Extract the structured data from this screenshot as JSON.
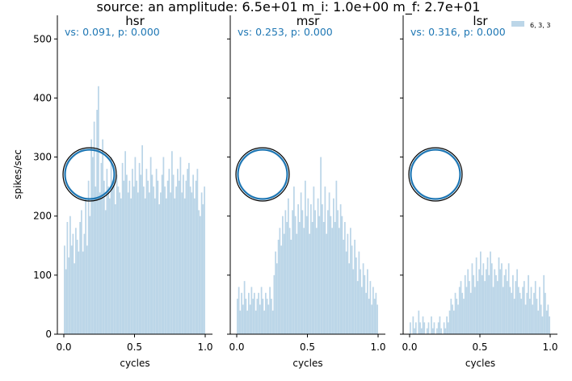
{
  "figure_title": "source: an amplitude: 6.5e+01 m_i: 1.0e+00 m_f: 2.7e+01",
  "ylabel": "spikes/sec",
  "legend_label": "6, 3, 3",
  "colors": {
    "bar": "#bcd6e8",
    "annotation": "#1f77b4",
    "circle_inner": "#1f77b4",
    "circle_outer": "#000000",
    "axis": "#000000"
  },
  "chart_data": [
    {
      "type": "bar",
      "title": "hsr",
      "annotation": "vs: 0.091, p: 0.000",
      "xlabel": "cycles",
      "xlim": [
        0.0,
        1.0
      ],
      "ylim": [
        0,
        540
      ],
      "x_ticks": [
        "0.0",
        "0.5",
        "1.0"
      ],
      "y_ticks": [
        "0",
        "100",
        "200",
        "300",
        "400",
        "500"
      ],
      "bins": 100,
      "values": [
        150,
        110,
        190,
        130,
        200,
        150,
        170,
        120,
        180,
        160,
        140,
        190,
        210,
        140,
        170,
        230,
        150,
        260,
        200,
        330,
        300,
        360,
        250,
        380,
        420,
        240,
        290,
        330,
        260,
        210,
        280,
        250,
        230,
        300,
        260,
        280,
        220,
        270,
        250,
        240,
        230,
        290,
        260,
        310,
        270,
        240,
        260,
        230,
        280,
        250,
        300,
        260,
        240,
        290,
        270,
        320,
        250,
        230,
        280,
        260,
        240,
        300,
        270,
        250,
        230,
        280,
        260,
        220,
        240,
        270,
        300,
        250,
        230,
        260,
        280,
        240,
        310,
        270,
        230,
        250,
        280,
        260,
        300,
        240,
        270,
        230,
        260,
        280,
        290,
        250,
        240,
        270,
        230,
        260,
        280,
        210,
        200,
        240,
        220,
        250
      ]
    },
    {
      "type": "bar",
      "title": "msr",
      "annotation": "vs: 0.253, p: 0.000",
      "xlabel": "cycles",
      "xlim": [
        0.0,
        1.0
      ],
      "ylim": [
        0,
        540
      ],
      "x_ticks": [
        "0.0",
        "0.5",
        "1.0"
      ],
      "y_ticks": [
        "0",
        "100",
        "200",
        "300",
        "400",
        "500"
      ],
      "bins": 100,
      "values": [
        60,
        80,
        40,
        70,
        50,
        90,
        60,
        40,
        70,
        50,
        80,
        60,
        70,
        40,
        60,
        70,
        50,
        80,
        60,
        40,
        70,
        60,
        50,
        80,
        60,
        40,
        100,
        140,
        120,
        160,
        180,
        150,
        200,
        170,
        210,
        190,
        230,
        180,
        160,
        210,
        250,
        200,
        170,
        220,
        190,
        240,
        210,
        180,
        260,
        200,
        230,
        170,
        220,
        190,
        250,
        210,
        180,
        230,
        200,
        300,
        220,
        190,
        250,
        170,
        210,
        240,
        200,
        180,
        230,
        190,
        260,
        210,
        180,
        220,
        200,
        160,
        190,
        140,
        170,
        120,
        180,
        150,
        110,
        160,
        130,
        90,
        140,
        110,
        80,
        120,
        100,
        70,
        110,
        60,
        90,
        50,
        80,
        60,
        70,
        50
      ]
    },
    {
      "type": "bar",
      "title": "lsr",
      "annotation": "vs: 0.316, p: 0.000",
      "xlabel": "cycles",
      "xlim": [
        0.0,
        1.0
      ],
      "ylim": [
        0,
        540
      ],
      "x_ticks": [
        "0.0",
        "0.5",
        "1.0"
      ],
      "y_ticks": [
        "0",
        "100",
        "200",
        "300",
        "400",
        "500"
      ],
      "bins": 100,
      "values": [
        20,
        0,
        30,
        10,
        20,
        0,
        40,
        20,
        10,
        30,
        20,
        0,
        10,
        20,
        0,
        30,
        10,
        20,
        0,
        10,
        20,
        30,
        10,
        0,
        20,
        10,
        30,
        20,
        40,
        60,
        50,
        40,
        70,
        60,
        50,
        80,
        90,
        70,
        60,
        100,
        80,
        110,
        90,
        70,
        120,
        100,
        80,
        130,
        90,
        110,
        140,
        100,
        120,
        90,
        110,
        130,
        100,
        140,
        120,
        80,
        110,
        100,
        90,
        130,
        110,
        120,
        80,
        100,
        110,
        90,
        120,
        80,
        70,
        100,
        60,
        90,
        110,
        80,
        70,
        60,
        80,
        90,
        50,
        70,
        100,
        60,
        80,
        50,
        70,
        90,
        60,
        40,
        80,
        50,
        30,
        100,
        70,
        40,
        50,
        30
      ]
    }
  ]
}
